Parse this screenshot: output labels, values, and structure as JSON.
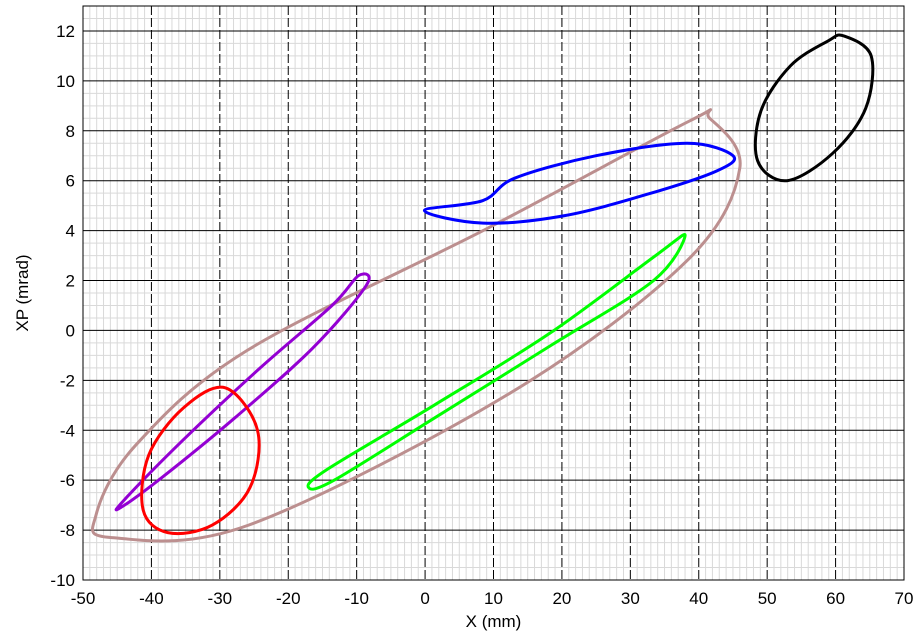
{
  "chart_data": {
    "type": "line",
    "xlabel": "X (mm)",
    "ylabel": "XP (mrad)",
    "xlim": [
      -50,
      70
    ],
    "ylim": [
      -10,
      13
    ],
    "xticks": [
      -50,
      -40,
      -30,
      -20,
      -10,
      0,
      10,
      20,
      30,
      40,
      50,
      60,
      70
    ],
    "yticks": [
      -10,
      -8,
      -6,
      -4,
      -2,
      0,
      2,
      4,
      6,
      8,
      10,
      12
    ],
    "x_tick_labels": [
      "-50",
      "-40",
      "-30",
      "-20",
      "-10",
      "0",
      "10",
      "20",
      "30",
      "40",
      "50",
      "60",
      "70"
    ],
    "y_tick_labels": [
      "-10",
      "-8",
      "-6",
      "-4",
      "-2",
      "0",
      "2",
      "4",
      "6",
      "8",
      "10",
      "12"
    ],
    "grid": true,
    "series": [
      {
        "color": "#bc8f8f",
        "x": [
          41.6,
          46.0,
          38.3,
          12.5,
          -25.8,
          -45.8,
          -48.1,
          -42.3,
          -26.0,
          9.2,
          38.7,
          41.6
        ],
        "y": [
          8.5,
          6.5,
          2.8,
          -2.5,
          -7.8,
          -8.3,
          -7.4,
          -4.6,
          -0.8,
          4.1,
          8.4,
          8.5
        ]
      },
      {
        "color": "#0000ff",
        "x": [
          -0.1,
          8.5,
          20.4,
          33.0,
          42.7,
          45.0,
          38.3,
          25.0,
          13.1,
          8.4,
          -0.1
        ],
        "y": [
          4.8,
          4.3,
          4.6,
          5.5,
          6.4,
          7.0,
          7.5,
          7.0,
          6.1,
          5.2,
          4.8
        ]
      },
      {
        "color": "#00ff00",
        "x": [
          38.0,
          33.4,
          18.4,
          2.0,
          -13.3,
          -17.0,
          -14.5,
          1.3,
          18.3,
          33.7,
          38.0
        ],
        "y": [
          3.8,
          2.0,
          -0.6,
          -3.4,
          -6.0,
          -6.3,
          -5.6,
          -3.0,
          -0.1,
          3.0,
          3.8
        ]
      },
      {
        "color": "#000000",
        "x": [
          61.2,
          65.2,
          64.4,
          59.6,
          52.9,
          48.6,
          49.1,
          53.4,
          58.9,
          61.2
        ],
        "y": [
          11.8,
          11.0,
          8.9,
          7.1,
          6.0,
          6.8,
          8.8,
          10.6,
          11.6,
          11.8
        ]
      },
      {
        "color": "#9400d3",
        "x": [
          -9.7,
          -8.6,
          -16.4,
          -27.8,
          -38.5,
          -44.5,
          -44.0,
          -35.4,
          -24.1,
          -13.6,
          -9.7
        ],
        "y": [
          2.2,
          1.8,
          -0.7,
          -3.5,
          -5.9,
          -7.1,
          -6.8,
          -4.4,
          -1.5,
          1.0,
          2.2
        ]
      },
      {
        "color": "#ff0000",
        "x": [
          -29.2,
          -24.5,
          -25.6,
          -31.1,
          -37.6,
          -41.2,
          -40.4,
          -35.3,
          -29.2
        ],
        "y": [
          -2.3,
          -4.0,
          -6.3,
          -7.8,
          -8.1,
          -7.2,
          -5.0,
          -3.1,
          -2.3
        ]
      }
    ]
  }
}
